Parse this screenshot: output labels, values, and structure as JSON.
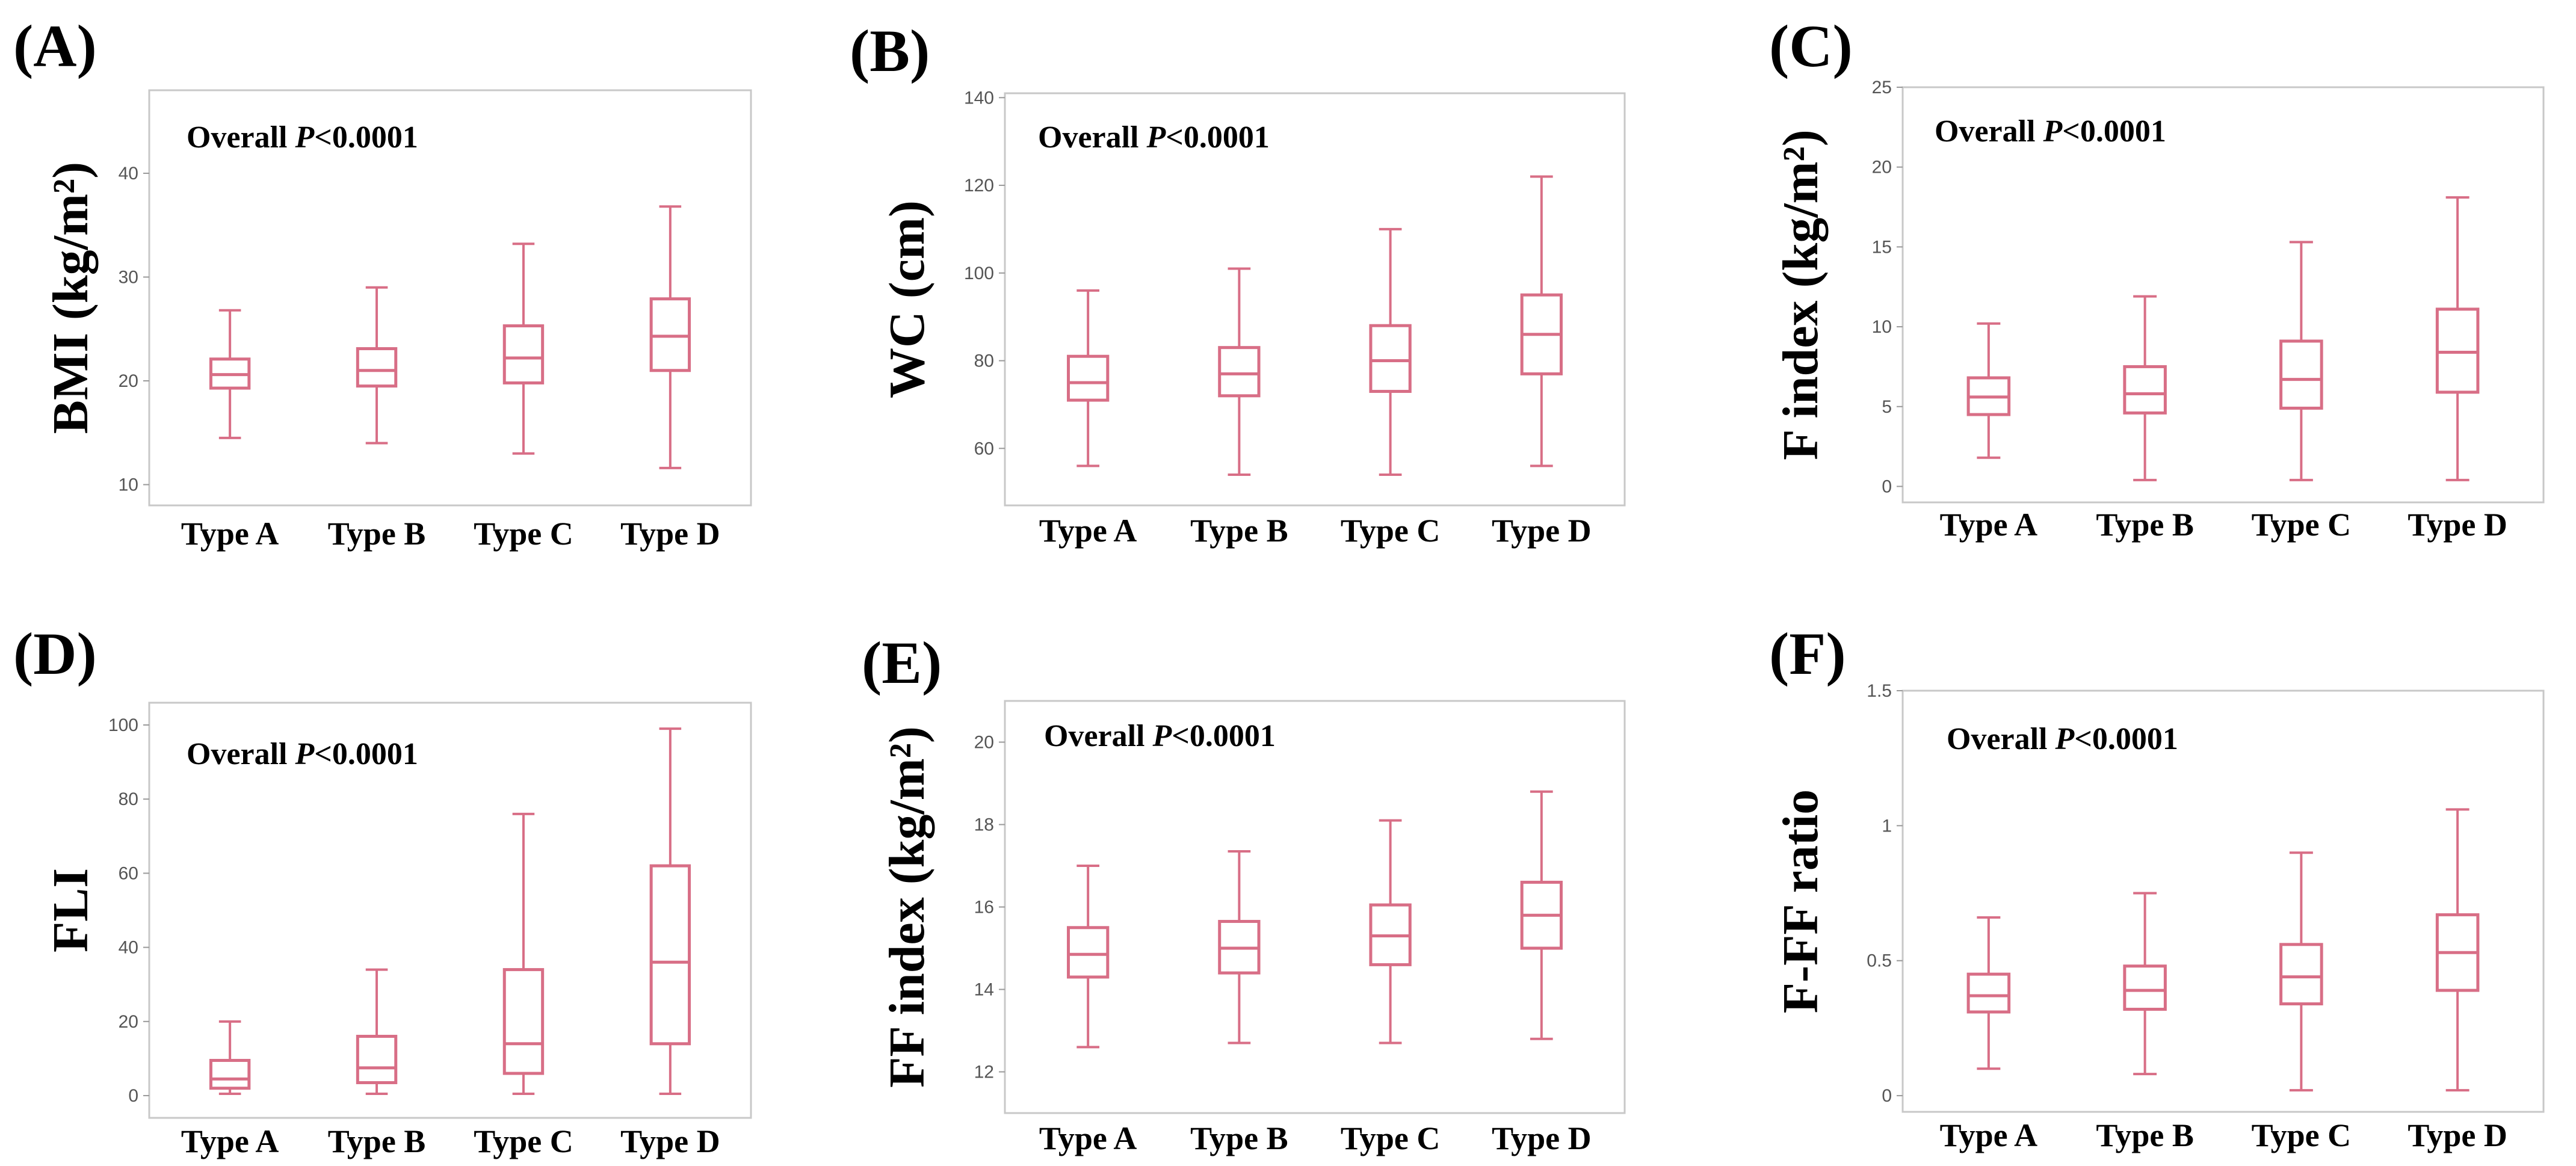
{
  "colors": {
    "box": "#d86e86",
    "frame": "#c8c8c8",
    "text": "#000000",
    "tick": "#555555"
  },
  "chart_data": [
    {
      "type": "box",
      "panel": "(A)",
      "ylabel": "BMI (kg/m²)",
      "annotation": {
        "prefix": "Overall ",
        "p": "P",
        "suffix": "<0.0001"
      },
      "categories": [
        "Type A",
        "Type B",
        "Type C",
        "Type D"
      ],
      "yticks": [
        "10",
        "20",
        "30",
        "40"
      ],
      "tick_values": [
        10,
        20,
        30,
        40
      ],
      "ylim": [
        8,
        48
      ],
      "boxes": [
        {
          "min": 14.5,
          "q1": 19.3,
          "median": 20.6,
          "q3": 22.1,
          "max": 26.8
        },
        {
          "min": 14.0,
          "q1": 19.5,
          "median": 21.0,
          "q3": 23.1,
          "max": 29.0
        },
        {
          "min": 13.0,
          "q1": 19.8,
          "median": 22.2,
          "q3": 25.3,
          "max": 33.2
        },
        {
          "min": 11.6,
          "q1": 21.0,
          "median": 24.3,
          "q3": 27.9,
          "max": 36.8
        }
      ]
    },
    {
      "type": "box",
      "panel": "(B)",
      "ylabel": "WC (cm)",
      "annotation": {
        "prefix": "Overall ",
        "p": "P",
        "suffix": "<0.0001"
      },
      "categories": [
        "Type A",
        "Type B",
        "Type C",
        "Type D"
      ],
      "yticks": [
        "60",
        "80",
        "100",
        "120",
        "140"
      ],
      "tick_values": [
        60,
        80,
        100,
        120,
        140
      ],
      "ylim": [
        47,
        141
      ],
      "boxes": [
        {
          "min": 56,
          "q1": 71,
          "median": 75,
          "q3": 81,
          "max": 96
        },
        {
          "min": 54,
          "q1": 72,
          "median": 77,
          "q3": 83,
          "max": 101
        },
        {
          "min": 54,
          "q1": 73,
          "median": 80,
          "q3": 88,
          "max": 110
        },
        {
          "min": 56,
          "q1": 77,
          "median": 86,
          "q3": 95,
          "max": 122
        }
      ]
    },
    {
      "type": "box",
      "panel": "(C)",
      "ylabel": "F index (kg/m²)",
      "annotation": {
        "prefix": "Overall ",
        "p": "P",
        "suffix": "<0.0001"
      },
      "categories": [
        "Type A",
        "Type B",
        "Type C",
        "Type D"
      ],
      "yticks": [
        "0",
        "5",
        "10",
        "15",
        "20",
        "25"
      ],
      "tick_values": [
        0,
        5,
        10,
        15,
        20,
        25
      ],
      "ylim": [
        -1,
        25
      ],
      "boxes": [
        {
          "min": 1.8,
          "q1": 4.5,
          "median": 5.6,
          "q3": 6.8,
          "max": 10.2
        },
        {
          "min": 0.4,
          "q1": 4.6,
          "median": 5.8,
          "q3": 7.5,
          "max": 11.9
        },
        {
          "min": 0.4,
          "q1": 4.9,
          "median": 6.7,
          "q3": 9.1,
          "max": 15.3
        },
        {
          "min": 0.4,
          "q1": 5.9,
          "median": 8.4,
          "q3": 11.1,
          "max": 18.1
        }
      ]
    },
    {
      "type": "box",
      "panel": "(D)",
      "ylabel": "FLI",
      "annotation": {
        "prefix": "Overall ",
        "p": "P",
        "suffix": "<0.0001"
      },
      "categories": [
        "Type A",
        "Type B",
        "Type C",
        "Type D"
      ],
      "yticks": [
        "0",
        "20",
        "40",
        "60",
        "80",
        "100"
      ],
      "tick_values": [
        0,
        20,
        40,
        60,
        80,
        100
      ],
      "ylim": [
        -6,
        106
      ],
      "boxes": [
        {
          "min": 0.5,
          "q1": 2.0,
          "median": 4.5,
          "q3": 9.5,
          "max": 20.0
        },
        {
          "min": 0.5,
          "q1": 3.5,
          "median": 7.5,
          "q3": 16.0,
          "max": 34.0
        },
        {
          "min": 0.5,
          "q1": 6.0,
          "median": 14.0,
          "q3": 34.0,
          "max": 76.0
        },
        {
          "min": 0.5,
          "q1": 14.0,
          "median": 36.0,
          "q3": 62.0,
          "max": 99.0
        }
      ]
    },
    {
      "type": "box",
      "panel": "(E)",
      "ylabel": "FF index (kg/m²)",
      "annotation": {
        "prefix": "Overall ",
        "p": "P",
        "suffix": "<0.0001"
      },
      "categories": [
        "Type A",
        "Type B",
        "Type C",
        "Type D"
      ],
      "yticks": [
        "12",
        "14",
        "16",
        "18",
        "20"
      ],
      "tick_values": [
        12,
        14,
        16,
        18,
        20
      ],
      "ylim": [
        11,
        21
      ],
      "boxes": [
        {
          "min": 12.6,
          "q1": 14.3,
          "median": 14.85,
          "q3": 15.5,
          "max": 17.0
        },
        {
          "min": 12.7,
          "q1": 14.4,
          "median": 15.0,
          "q3": 15.65,
          "max": 17.35
        },
        {
          "min": 12.7,
          "q1": 14.6,
          "median": 15.3,
          "q3": 16.05,
          "max": 18.1
        },
        {
          "min": 12.8,
          "q1": 15.0,
          "median": 15.8,
          "q3": 16.6,
          "max": 18.8
        }
      ]
    },
    {
      "type": "box",
      "panel": "(F)",
      "ylabel": "F-FF ratio",
      "annotation": {
        "prefix": "Overall ",
        "p": "P",
        "suffix": "<0.0001"
      },
      "categories": [
        "Type A",
        "Type B",
        "Type C",
        "Type D"
      ],
      "yticks": [
        "0",
        "0.5",
        "1",
        "1.5"
      ],
      "tick_values": [
        0,
        0.5,
        1.0,
        1.5
      ],
      "ylim": [
        -0.06,
        1.5
      ],
      "boxes": [
        {
          "min": 0.1,
          "q1": 0.31,
          "median": 0.37,
          "q3": 0.45,
          "max": 0.66
        },
        {
          "min": 0.08,
          "q1": 0.32,
          "median": 0.39,
          "q3": 0.48,
          "max": 0.75
        },
        {
          "min": 0.02,
          "q1": 0.34,
          "median": 0.44,
          "q3": 0.56,
          "max": 0.9
        },
        {
          "min": 0.02,
          "q1": 0.39,
          "median": 0.53,
          "q3": 0.67,
          "max": 1.06
        }
      ]
    }
  ]
}
